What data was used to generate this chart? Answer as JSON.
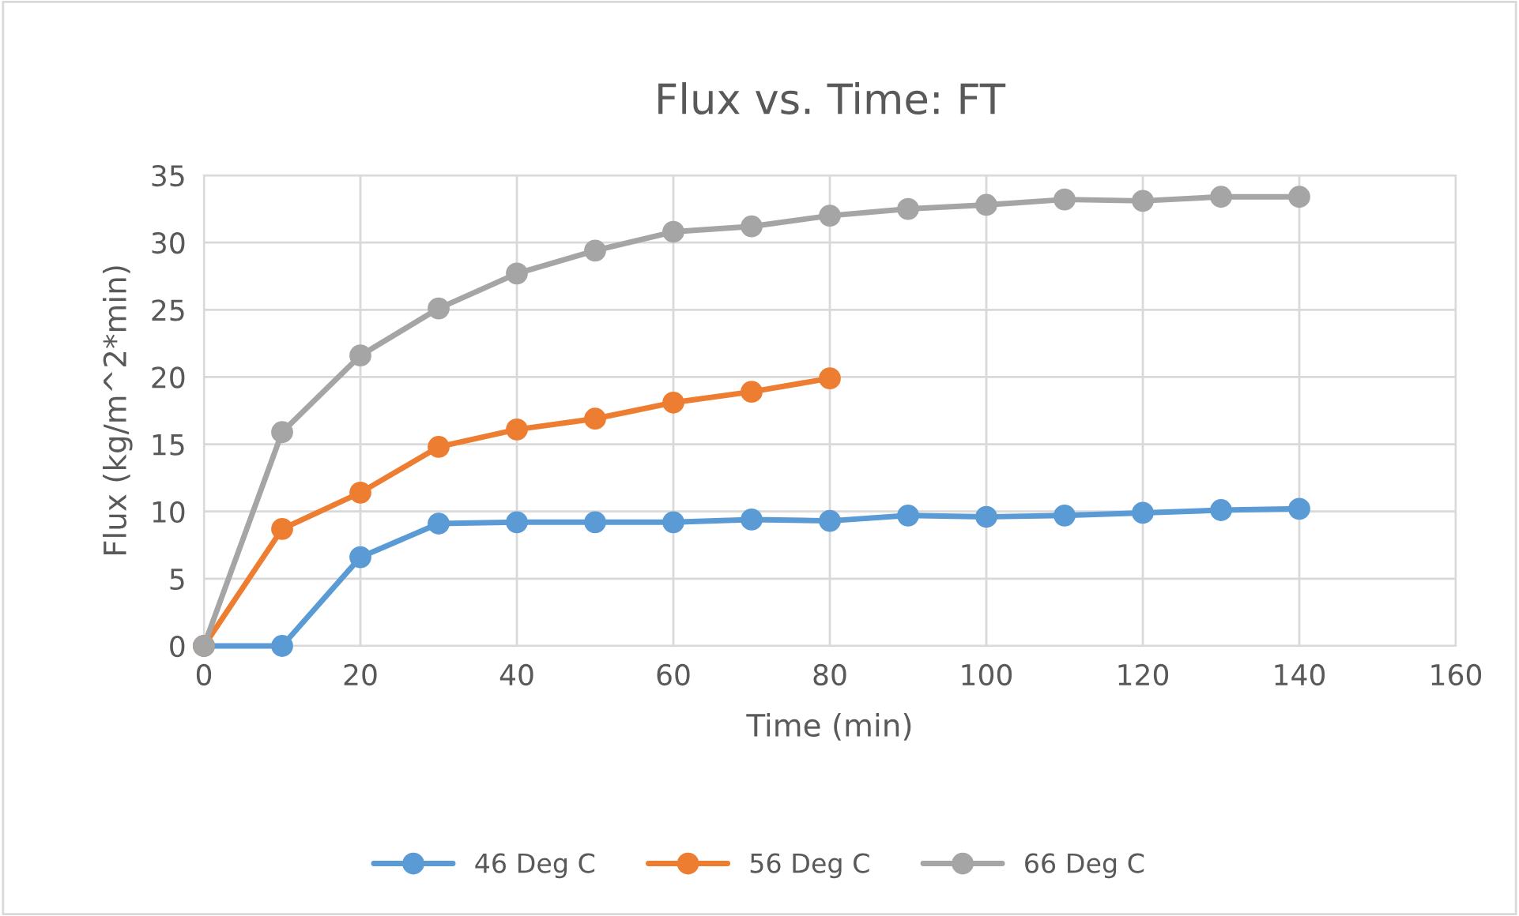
{
  "chart_data": {
    "type": "line",
    "title": "Flux vs. Time: FT",
    "xlabel": "Time (min)",
    "ylabel": "Flux (kg/m^2*min)",
    "xlim": [
      0,
      160
    ],
    "xticks": [
      0,
      20,
      40,
      60,
      80,
      100,
      120,
      140,
      160
    ],
    "ylim": [
      0,
      35
    ],
    "yticks": [
      0,
      5,
      10,
      15,
      20,
      25,
      30,
      35
    ],
    "grid": true,
    "legend": "bottom",
    "marker": "circle",
    "line_style": "solid",
    "series": [
      {
        "name": "46 Deg C",
        "color": "#5b9bd5",
        "x": [
          0,
          10,
          20,
          30,
          40,
          50,
          60,
          70,
          80,
          90,
          100,
          110,
          120,
          130,
          140
        ],
        "values": [
          0,
          0,
          6.6,
          9.1,
          9.2,
          9.2,
          9.2,
          9.4,
          9.3,
          9.7,
          9.6,
          9.7,
          9.9,
          10.1,
          10.2
        ]
      },
      {
        "name": "56 Deg C",
        "color": "#ed7d31",
        "x": [
          0,
          10,
          20,
          30,
          40,
          50,
          60,
          70,
          80
        ],
        "values": [
          0,
          8.7,
          11.4,
          14.8,
          16.1,
          16.9,
          18.1,
          18.9,
          19.9
        ]
      },
      {
        "name": "66 Deg C",
        "color": "#a5a5a5",
        "x": [
          0,
          10,
          20,
          30,
          40,
          50,
          60,
          70,
          80,
          90,
          100,
          110,
          120,
          130,
          140
        ],
        "values": [
          0,
          15.9,
          21.6,
          25.1,
          27.7,
          29.4,
          30.8,
          31.2,
          32.0,
          32.5,
          32.8,
          33.2,
          33.1,
          33.4,
          33.4
        ]
      }
    ]
  }
}
